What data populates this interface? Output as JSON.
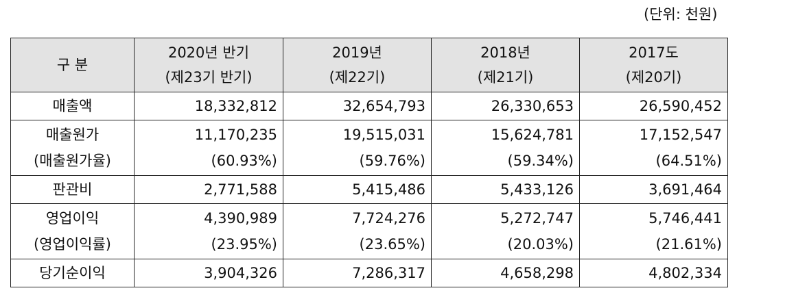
{
  "unit_note": "(단위: 천원)",
  "header": {
    "category": "구 분",
    "columns": [
      {
        "line1": "2020년 반기",
        "line2": "(제23기 반기)"
      },
      {
        "line1": "2019년",
        "line2": "(제22기)"
      },
      {
        "line1": "2018년",
        "line2": "(제21기)"
      },
      {
        "line1": "2017도",
        "line2": "(제20기)"
      }
    ]
  },
  "rows": [
    {
      "label": "매출액",
      "values": [
        "18,332,812",
        "32,654,793",
        "26,330,653",
        "26,590,452"
      ]
    },
    {
      "label": "매출원가",
      "sublabel": "(매출원가율)",
      "values": [
        "11,170,235",
        "19,515,031",
        "15,624,781",
        "17,152,547"
      ],
      "subvalues": [
        "(60.93%)",
        "(59.76%)",
        "(59.34%)",
        "(64.51%)"
      ]
    },
    {
      "label": "판관비",
      "values": [
        "2,771,588",
        "5,415,486",
        "5,433,126",
        "3,691,464"
      ]
    },
    {
      "label": "영업이익",
      "sublabel": "(영업이익률)",
      "values": [
        "4,390,989",
        "7,724,276",
        "5,272,747",
        "5,746,441"
      ],
      "subvalues": [
        "(23.95%)",
        "(23.65%)",
        "(20.03%)",
        "(21.61%)"
      ]
    },
    {
      "label": "당기순이익",
      "values": [
        "3,904,326",
        "7,286,317",
        "4,658,298",
        "4,802,334"
      ]
    }
  ]
}
